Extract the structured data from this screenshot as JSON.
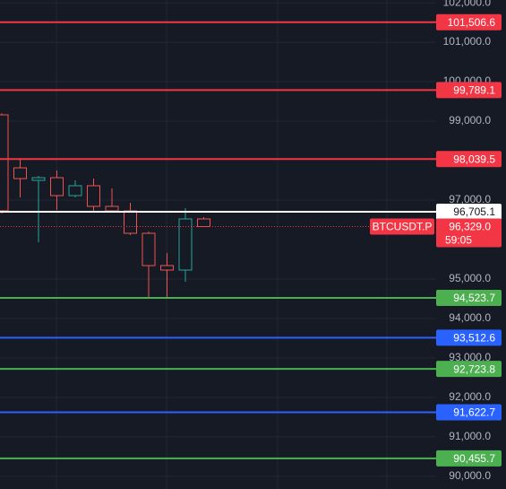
{
  "chart_data": {
    "type": "candlestick",
    "categories": [
      null,
      null,
      null,
      null,
      null,
      null,
      null,
      null,
      null,
      null,
      null,
      null
    ],
    "open": [
      99160,
      97818,
      97500,
      97568,
      97114,
      97364,
      96841,
      96727,
      96159,
      95341,
      95227,
      96523
    ],
    "high": [
      99200,
      98023,
      97614,
      97750,
      97500,
      97545,
      97295,
      96932,
      96205,
      95659,
      96795,
      96568
    ],
    "low": [
      96660,
      97068,
      95932,
      96750,
      97068,
      96682,
      96682,
      96114,
      94545,
      94545,
      94932,
      96329
    ],
    "close": [
      96730,
      97545,
      97568,
      97114,
      97364,
      96841,
      96727,
      96159,
      95341,
      95227,
      96523,
      96329
    ],
    "up_color": "#26a69a",
    "down_color": "#ef5350",
    "ylim": [
      89680,
      102070
    ],
    "yticks": [
      {
        "value": 102000,
        "label": "102,000.0"
      },
      {
        "value": 101000,
        "label": "101,000.0"
      },
      {
        "value": 100000,
        "label": "100,000.0"
      },
      {
        "value": 99000,
        "label": "99,000.0"
      },
      {
        "value": 97000,
        "label": "97,000.0"
      },
      {
        "value": 95000,
        "label": "95,000.0"
      },
      {
        "value": 94000,
        "label": "94,000.0"
      },
      {
        "value": 93000,
        "label": "93,000.0"
      },
      {
        "value": 92000,
        "label": "92,000.0"
      },
      {
        "value": 91000,
        "label": "91,000.0"
      },
      {
        "value": 90000,
        "label": "90,000.0"
      }
    ],
    "grid": true,
    "levels": [
      {
        "value": 101506.6,
        "value_label": "101,506.6",
        "color": "#f23645"
      },
      {
        "value": 99789.1,
        "value_label": "99,789.1",
        "color": "#f23645"
      },
      {
        "value": 98039.5,
        "value_label": "98,039.5",
        "color": "#f23645"
      },
      {
        "value": 96705.1,
        "value_label": "96,705.1",
        "color": "#ffffff"
      },
      {
        "value": 94523.7,
        "value_label": "94,523.7",
        "color": "#4caf50"
      },
      {
        "value": 93512.6,
        "value_label": "93,512.6",
        "color": "#2962ff"
      },
      {
        "value": 92723.8,
        "value_label": "92,723.8",
        "color": "#4caf50"
      },
      {
        "value": 91622.7,
        "value_label": "91,622.7",
        "color": "#2962ff"
      },
      {
        "value": 90455.7,
        "value_label": "90,455.7",
        "color": "#4caf50"
      }
    ],
    "last_price": {
      "symbol": "BTCUSDT.P",
      "value": 96329.0,
      "value_label": "96,329.0",
      "countdown": "59:05",
      "color": "#f23645"
    }
  }
}
